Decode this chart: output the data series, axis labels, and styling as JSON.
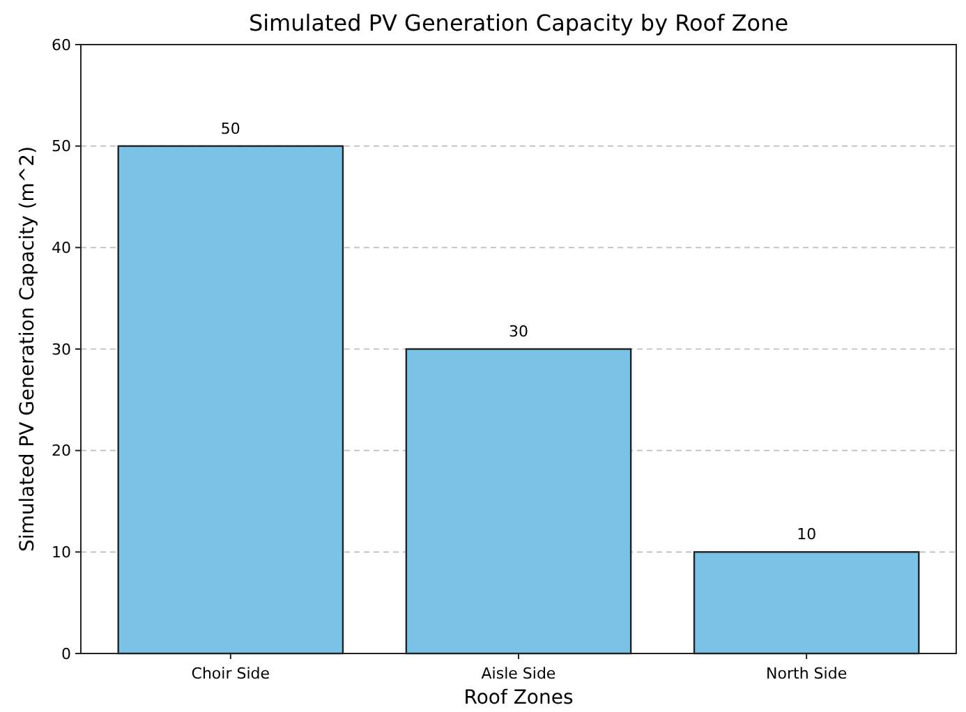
{
  "chart_data": {
    "type": "bar",
    "title": "Simulated PV Generation Capacity by Roof Zone",
    "xlabel": "Roof Zones",
    "ylabel": "Simulated PV Generation Capacity (m^2)",
    "categories": [
      "Choir Side",
      "Aisle Side",
      "North Side"
    ],
    "values": [
      50,
      30,
      10
    ],
    "color": "#7bc3e6",
    "ylim": [
      0,
      60
    ],
    "yticks": [
      0,
      10,
      20,
      30,
      40,
      50,
      60
    ],
    "grid": "y",
    "data_labels": true
  }
}
